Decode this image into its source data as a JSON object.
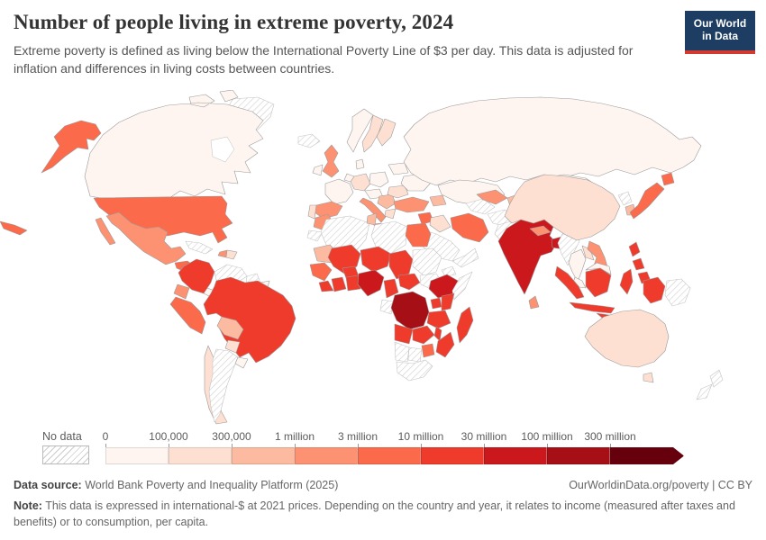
{
  "header": {
    "title": "Number of people living in extreme poverty, 2024",
    "subtitle": "Extreme poverty is defined as living below the International Poverty Line of $3 per day. This data is adjusted for inflation and differences in living costs between countries."
  },
  "logo": {
    "line1": "Our World",
    "line2": "in Data"
  },
  "brand": {
    "navy": "#1d3d63",
    "red": "#d13b32"
  },
  "legend": {
    "no_data_label": "No data",
    "tick_labels": [
      "0",
      "100,000",
      "300,000",
      "1 million",
      "3 million",
      "10 million",
      "30 million",
      "100 million",
      "300 million"
    ],
    "colors": [
      "#fff5f0",
      "#fee0d2",
      "#fcbba1",
      "#fc9272",
      "#fb6a4a",
      "#ef3b2c",
      "#cb181d",
      "#a50f15",
      "#67000d"
    ]
  },
  "footer": {
    "source_label": "Data source:",
    "source_text": " World Bank Poverty and Inequality Platform (2025)",
    "credit": "OurWorldinData.org/poverty | CC BY",
    "note_label": "Note:",
    "note_text": " This data is expressed in international-$ at 2021 prices. Depending on the country and year, it relates to income (measured after taxes and benefits) or to consumption, per capita."
  },
  "chart_data": {
    "type": "choropleth",
    "title": "Number of people living in extreme poverty",
    "year": "2024",
    "unit": "people",
    "legend_position": "bottom",
    "bin_ranges": [
      "0–100,000",
      "100,000–300,000",
      "300,000–1 million",
      "1–3 million",
      "3–10 million",
      "10–30 million",
      "30–100 million",
      "100–300 million",
      "300+ million"
    ],
    "no_data": {
      "label": "No data",
      "pattern": "diagonal-hatch"
    },
    "countries": [
      {
        "id": "greenland",
        "name": "Greenland",
        "bin": -1
      },
      {
        "id": "canada",
        "name": "Canada",
        "bin": 0
      },
      {
        "id": "usa",
        "name": "United States",
        "bin": 4
      },
      {
        "id": "mexico",
        "name": "Mexico",
        "bin": 3
      },
      {
        "id": "guatemala",
        "name": "Guatemala",
        "bin": 4
      },
      {
        "id": "honduras",
        "name": "Honduras",
        "bin": 3
      },
      {
        "id": "nicaragua",
        "name": "Nicaragua",
        "bin": 1
      },
      {
        "id": "costa-rica-panama",
        "name": "Costa Rica / Panama",
        "bin": 0
      },
      {
        "id": "cuba",
        "name": "Cuba",
        "bin": -1
      },
      {
        "id": "haiti",
        "name": "Haiti",
        "bin": 3
      },
      {
        "id": "dominican-republic",
        "name": "Dominican Republic",
        "bin": 1
      },
      {
        "id": "colombia",
        "name": "Colombia",
        "bin": 5
      },
      {
        "id": "venezuela",
        "name": "Venezuela",
        "bin": -1
      },
      {
        "id": "guyana",
        "name": "Guyana",
        "bin": -1
      },
      {
        "id": "suriname",
        "name": "Suriname",
        "bin": 0
      },
      {
        "id": "ecuador",
        "name": "Ecuador",
        "bin": 3
      },
      {
        "id": "peru",
        "name": "Peru",
        "bin": 4
      },
      {
        "id": "brazil",
        "name": "Brazil",
        "bin": 5
      },
      {
        "id": "bolivia",
        "name": "Bolivia",
        "bin": 2
      },
      {
        "id": "paraguay",
        "name": "Paraguay",
        "bin": 1
      },
      {
        "id": "chile",
        "name": "Chile",
        "bin": 1
      },
      {
        "id": "argentina",
        "name": "Argentina",
        "bin": -1
      },
      {
        "id": "uruguay",
        "name": "Uruguay",
        "bin": 0
      },
      {
        "id": "iceland",
        "name": "Iceland",
        "bin": -1
      },
      {
        "id": "united-kingdom",
        "name": "United Kingdom",
        "bin": 3
      },
      {
        "id": "ireland",
        "name": "Ireland",
        "bin": 0
      },
      {
        "id": "norway",
        "name": "Norway",
        "bin": 0
      },
      {
        "id": "sweden",
        "name": "Sweden",
        "bin": 1
      },
      {
        "id": "finland",
        "name": "Finland",
        "bin": 1
      },
      {
        "id": "denmark",
        "name": "Denmark",
        "bin": 0
      },
      {
        "id": "france",
        "name": "France",
        "bin": 0
      },
      {
        "id": "spain",
        "name": "Spain",
        "bin": 3
      },
      {
        "id": "portugal",
        "name": "Portugal",
        "bin": 1
      },
      {
        "id": "germany",
        "name": "Germany",
        "bin": 1
      },
      {
        "id": "benelux",
        "name": "Belgium / Netherlands",
        "bin": 0
      },
      {
        "id": "poland",
        "name": "Poland",
        "bin": 0
      },
      {
        "id": "central-europe",
        "name": "Czechia / Austria",
        "bin": 0
      },
      {
        "id": "italy",
        "name": "Italy",
        "bin": 3
      },
      {
        "id": "balkans",
        "name": "Balkans",
        "bin": 2
      },
      {
        "id": "greece",
        "name": "Greece",
        "bin": 1
      },
      {
        "id": "romania",
        "name": "Romania",
        "bin": 1
      },
      {
        "id": "ukraine",
        "name": "Ukraine",
        "bin": 0
      },
      {
        "id": "belarus-baltics",
        "name": "Belarus / Baltics",
        "bin": 0
      },
      {
        "id": "russia",
        "name": "Russia",
        "bin": 0
      },
      {
        "id": "kazakhstan",
        "name": "Kazakhstan",
        "bin": 0
      },
      {
        "id": "mongolia",
        "name": "Mongolia",
        "bin": 0
      },
      {
        "id": "turkey",
        "name": "Turkey",
        "bin": 3
      },
      {
        "id": "syria",
        "name": "Syria",
        "bin": 4
      },
      {
        "id": "iraq",
        "name": "Iraq",
        "bin": 1
      },
      {
        "id": "iran",
        "name": "Iran",
        "bin": 4
      },
      {
        "id": "saudi-arabia",
        "name": "Saudi Arabia",
        "bin": -1
      },
      {
        "id": "yemen-oman",
        "name": "Yemen / Oman",
        "bin": -1
      },
      {
        "id": "caucasus",
        "name": "Caucasus",
        "bin": 2
      },
      {
        "id": "turkmenistan",
        "name": "Turkmenistan",
        "bin": -1
      },
      {
        "id": "uzbekistan",
        "name": "Uzbekistan",
        "bin": 3
      },
      {
        "id": "kyrgyzstan-tajikistan",
        "name": "Kyrgyzstan / Tajikistan",
        "bin": 2
      },
      {
        "id": "afghanistan",
        "name": "Afghanistan",
        "bin": -1
      },
      {
        "id": "pakistan",
        "name": "Pakistan",
        "bin": -1
      },
      {
        "id": "india",
        "name": "India",
        "bin": 6
      },
      {
        "id": "nepal",
        "name": "Nepal",
        "bin": 3
      },
      {
        "id": "bangladesh",
        "name": "Bangladesh",
        "bin": 6
      },
      {
        "id": "sri-lanka",
        "name": "Sri Lanka",
        "bin": 3
      },
      {
        "id": "myanmar",
        "name": "Myanmar",
        "bin": -1
      },
      {
        "id": "china",
        "name": "China",
        "bin": 1
      },
      {
        "id": "north-korea",
        "name": "North Korea",
        "bin": -1
      },
      {
        "id": "south-korea",
        "name": "South Korea",
        "bin": 2
      },
      {
        "id": "japan",
        "name": "Japan",
        "bin": 4
      },
      {
        "id": "thailand",
        "name": "Thailand",
        "bin": 0
      },
      {
        "id": "laos",
        "name": "Laos",
        "bin": 1
      },
      {
        "id": "vietnam",
        "name": "Vietnam",
        "bin": 3
      },
      {
        "id": "cambodia",
        "name": "Cambodia",
        "bin": -1
      },
      {
        "id": "malaysia",
        "name": "Malaysia",
        "bin": 0
      },
      {
        "id": "philippines",
        "name": "Philippines",
        "bin": 5
      },
      {
        "id": "indonesia",
        "name": "Indonesia",
        "bin": 5
      },
      {
        "id": "papua-new-guinea",
        "name": "Papua New Guinea",
        "bin": -1
      },
      {
        "id": "morocco",
        "name": "Morocco",
        "bin": 3
      },
      {
        "id": "western-sahara",
        "name": "Western Sahara",
        "bin": -1
      },
      {
        "id": "algeria",
        "name": "Algeria",
        "bin": -1
      },
      {
        "id": "tunisia",
        "name": "Tunisia",
        "bin": 2
      },
      {
        "id": "libya",
        "name": "Libya",
        "bin": -1
      },
      {
        "id": "egypt",
        "name": "Egypt",
        "bin": 4
      },
      {
        "id": "mauritania",
        "name": "Mauritania",
        "bin": 2
      },
      {
        "id": "senegal-guinea",
        "name": "Senegal / Guinea",
        "bin": 4
      },
      {
        "id": "sierra-leone-liberia",
        "name": "Sierra Leone / Liberia",
        "bin": 5
      },
      {
        "id": "mali",
        "name": "Mali",
        "bin": 5
      },
      {
        "id": "burkina-faso",
        "name": "Burkina Faso",
        "bin": 5
      },
      {
        "id": "cote-divoire",
        "name": "Côte d'Ivoire",
        "bin": 5
      },
      {
        "id": "ghana-togo-benin",
        "name": "Ghana / Togo / Benin",
        "bin": 5
      },
      {
        "id": "niger",
        "name": "Niger",
        "bin": 5
      },
      {
        "id": "chad",
        "name": "Chad",
        "bin": 5
      },
      {
        "id": "nigeria",
        "name": "Nigeria",
        "bin": 6
      },
      {
        "id": "cameroon",
        "name": "Cameroon",
        "bin": 5
      },
      {
        "id": "central-african-republic",
        "name": "Central African Republic",
        "bin": 5
      },
      {
        "id": "sudan",
        "name": "Sudan",
        "bin": -1
      },
      {
        "id": "south-sudan",
        "name": "South Sudan",
        "bin": -1
      },
      {
        "id": "eritrea-djibouti",
        "name": "Eritrea / Djibouti",
        "bin": -1
      },
      {
        "id": "ethiopia",
        "name": "Ethiopia",
        "bin": 6
      },
      {
        "id": "somalia",
        "name": "Somalia",
        "bin": -1
      },
      {
        "id": "uganda",
        "name": "Uganda",
        "bin": 5
      },
      {
        "id": "kenya",
        "name": "Kenya",
        "bin": 5
      },
      {
        "id": "gabon-congo",
        "name": "Gabon / Congo",
        "bin": -1
      },
      {
        "id": "drc",
        "name": "Democratic Republic of Congo",
        "bin": 7
      },
      {
        "id": "tanzania",
        "name": "Tanzania",
        "bin": 5
      },
      {
        "id": "angola",
        "name": "Angola",
        "bin": 5
      },
      {
        "id": "zambia",
        "name": "Zambia",
        "bin": 5
      },
      {
        "id": "malawi",
        "name": "Malawi",
        "bin": 5
      },
      {
        "id": "mozambique",
        "name": "Mozambique",
        "bin": 5
      },
      {
        "id": "zimbabwe",
        "name": "Zimbabwe",
        "bin": 4
      },
      {
        "id": "botswana",
        "name": "Botswana",
        "bin": -1
      },
      {
        "id": "namibia",
        "name": "Namibia",
        "bin": -1
      },
      {
        "id": "south-africa",
        "name": "South Africa",
        "bin": -1
      },
      {
        "id": "madagascar",
        "name": "Madagascar",
        "bin": 5
      },
      {
        "id": "australia",
        "name": "Australia",
        "bin": 1
      },
      {
        "id": "new-zealand",
        "name": "New Zealand",
        "bin": -1
      }
    ]
  }
}
